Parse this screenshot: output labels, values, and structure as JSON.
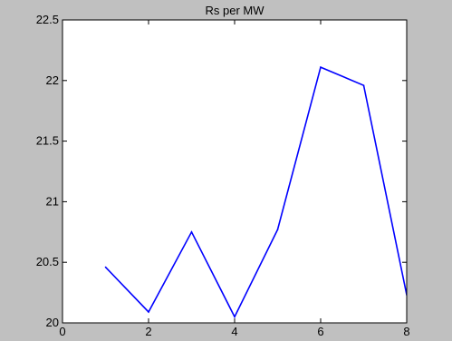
{
  "chart_data": {
    "type": "line",
    "title": "Rs per MW",
    "xlabel": "",
    "ylabel": "",
    "xlim": [
      0,
      8
    ],
    "ylim": [
      20,
      22.5
    ],
    "xticks": [
      "0",
      "2",
      "4",
      "6",
      "8"
    ],
    "yticks": [
      "20",
      "20.5",
      "21",
      "21.5",
      "22",
      "22.5"
    ],
    "grid": false,
    "series": [
      {
        "x": [
          1,
          2,
          3,
          4,
          5,
          6,
          7,
          8
        ],
        "y": [
          20.46,
          20.09,
          20.75,
          20.05,
          20.77,
          22.11,
          21.96,
          20.23
        ],
        "color": "#0000ff"
      }
    ],
    "colors": {
      "figure_background": "#c0c0c0",
      "axes_background": "#ffffff",
      "line": "#0000ff"
    }
  }
}
